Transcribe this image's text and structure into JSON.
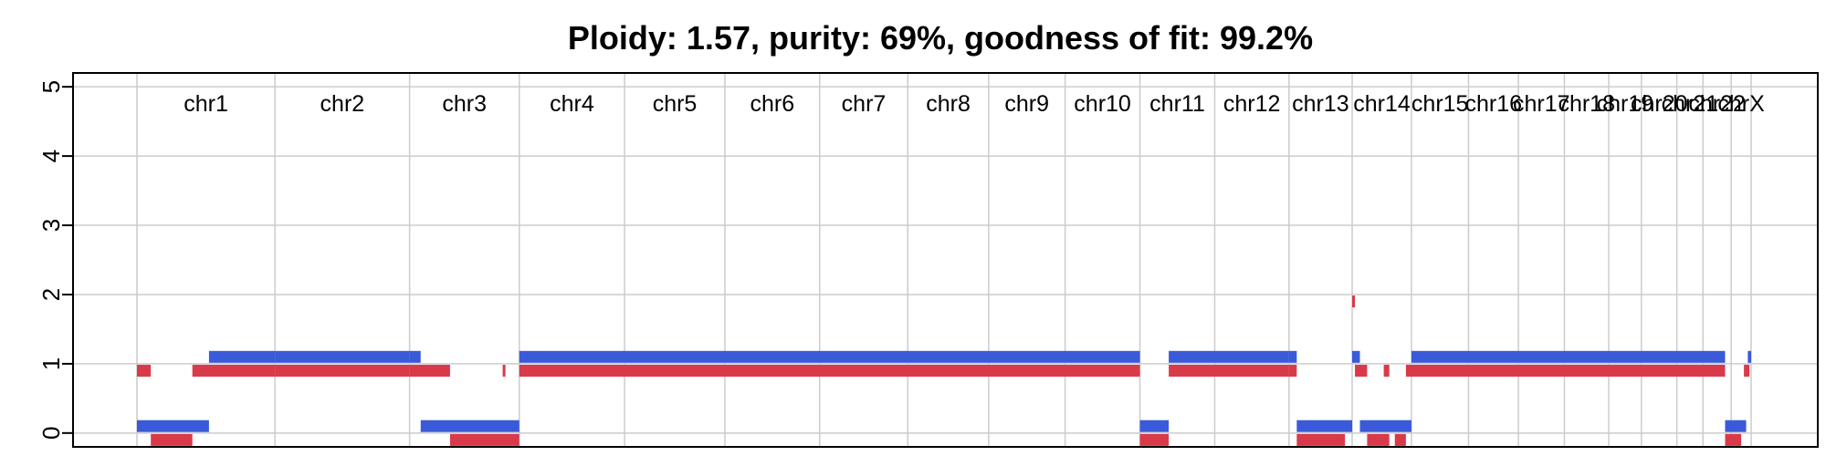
{
  "chart_data": {
    "type": "segments",
    "title": "Ploidy: 1.57, purity: 69%, goodness of fit: 99.2%",
    "xlabel": "",
    "ylabel": "",
    "ylim": [
      -0.2,
      5.2
    ],
    "yticks": [
      0,
      1,
      2,
      3,
      4,
      5
    ],
    "grid": true,
    "colors": {
      "major": "#3a5ad9",
      "minor": "#d93a4a",
      "grid": "#cccccc",
      "axis": "#000000"
    },
    "chromosomes": [
      {
        "name": "chr1",
        "start": 0,
        "end": 249
      },
      {
        "name": "chr2",
        "start": 249,
        "end": 492
      },
      {
        "name": "chr3",
        "start": 492,
        "end": 690
      },
      {
        "name": "chr4",
        "start": 690,
        "end": 880
      },
      {
        "name": "chr5",
        "start": 880,
        "end": 1061
      },
      {
        "name": "chr6",
        "start": 1061,
        "end": 1232
      },
      {
        "name": "chr7",
        "start": 1232,
        "end": 1391
      },
      {
        "name": "chr8",
        "start": 1391,
        "end": 1537
      },
      {
        "name": "chr9",
        "start": 1537,
        "end": 1675
      },
      {
        "name": "chr10",
        "start": 1675,
        "end": 1810
      },
      {
        "name": "chr11",
        "start": 1810,
        "end": 1945
      },
      {
        "name": "chr12",
        "start": 1945,
        "end": 2079
      },
      {
        "name": "chr13",
        "start": 2079,
        "end": 2193
      },
      {
        "name": "chr14",
        "start": 2193,
        "end": 2300
      },
      {
        "name": "chr15",
        "start": 2300,
        "end": 2403
      },
      {
        "name": "chr16",
        "start": 2403,
        "end": 2493
      },
      {
        "name": "chr17",
        "start": 2493,
        "end": 2576
      },
      {
        "name": "chr18",
        "start": 2576,
        "end": 2656
      },
      {
        "name": "chr19",
        "start": 2656,
        "end": 2715
      },
      {
        "name": "chr20",
        "start": 2715,
        "end": 2779
      },
      {
        "name": "chr21",
        "start": 2779,
        "end": 2826
      },
      {
        "name": "chr22",
        "start": 2826,
        "end": 2877
      },
      {
        "name": "chrX",
        "start": 2877,
        "end": 2913
      }
    ],
    "series": [
      {
        "key": "major",
        "segments": [
          {
            "start": 0,
            "end": 130,
            "value": 0.1
          },
          {
            "start": 130,
            "end": 249,
            "value": 1.1
          },
          {
            "start": 249,
            "end": 492,
            "value": 1.1
          },
          {
            "start": 492,
            "end": 512,
            "value": 1.1
          },
          {
            "start": 512,
            "end": 690,
            "value": 0.1
          },
          {
            "start": 690,
            "end": 1810,
            "value": 1.1
          },
          {
            "start": 1810,
            "end": 1862,
            "value": 0.1
          },
          {
            "start": 1862,
            "end": 2079,
            "value": 1.1
          },
          {
            "start": 2079,
            "end": 2093,
            "value": 1.1
          },
          {
            "start": 2093,
            "end": 2193,
            "value": 0.1
          },
          {
            "start": 2193,
            "end": 2207,
            "value": 1.1
          },
          {
            "start": 2207,
            "end": 2300,
            "value": 0.1
          },
          {
            "start": 2300,
            "end": 2866,
            "value": 1.1
          },
          {
            "start": 2866,
            "end": 2904,
            "value": 0.1
          },
          {
            "start": 2907,
            "end": 2913,
            "value": 1.1
          }
        ]
      },
      {
        "key": "minor",
        "segments": [
          {
            "start": 0,
            "end": 25,
            "value": 0.9
          },
          {
            "start": 25,
            "end": 100,
            "value": -0.1
          },
          {
            "start": 100,
            "end": 249,
            "value": 0.9
          },
          {
            "start": 249,
            "end": 492,
            "value": 0.9
          },
          {
            "start": 492,
            "end": 565,
            "value": 0.9
          },
          {
            "start": 565,
            "end": 690,
            "value": -0.1
          },
          {
            "start": 660,
            "end": 665,
            "value": 0.9
          },
          {
            "start": 690,
            "end": 1810,
            "value": 0.9
          },
          {
            "start": 1810,
            "end": 1862,
            "value": -0.1
          },
          {
            "start": 1862,
            "end": 2079,
            "value": 0.9
          },
          {
            "start": 2079,
            "end": 2093,
            "value": 0.9
          },
          {
            "start": 2093,
            "end": 2180,
            "value": -0.1
          },
          {
            "start": 2193,
            "end": 2198,
            "value": 1.9
          },
          {
            "start": 2198,
            "end": 2220,
            "value": 0.9
          },
          {
            "start": 2220,
            "end": 2260,
            "value": -0.1
          },
          {
            "start": 2250,
            "end": 2260,
            "value": 0.9
          },
          {
            "start": 2270,
            "end": 2290,
            "value": -0.1
          },
          {
            "start": 2290,
            "end": 2866,
            "value": 0.9
          },
          {
            "start": 2866,
            "end": 2895,
            "value": -0.1
          },
          {
            "start": 2900,
            "end": 2910,
            "value": 0.9
          }
        ]
      }
    ]
  }
}
